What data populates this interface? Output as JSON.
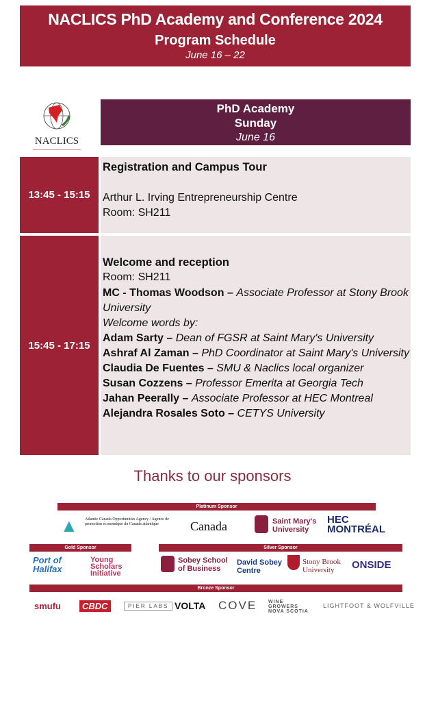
{
  "header": {
    "title": "NACLICS PhD Academy and Conference 2024",
    "subtitle": "Program Schedule",
    "dates": "June 16 – 22"
  },
  "logo": {
    "name": "NACLICS"
  },
  "day": {
    "section": "PhD Academy",
    "weekday": "Sunday",
    "date": "June 16"
  },
  "colors": {
    "primary": "#9d2235",
    "day_header": "#5f1f40",
    "cell_bg": "#ede5e6"
  },
  "sessions": [
    {
      "time": "13:45 - 15:15",
      "title": "Registration and Campus Tour",
      "location": "Arthur L. Irving Entrepreneurship Centre",
      "room": "Room: SH211"
    },
    {
      "time": "15:45 - 17:15",
      "title": "Welcome and reception",
      "room": "Room: SH211",
      "mc": {
        "name": "MC - Thomas Woodson –",
        "role": "Associate Professor at Stony Brook University"
      },
      "welcome_label": "Welcome words by:",
      "speakers": [
        {
          "name": "Adam Sarty –",
          "role": "Dean of FGSR at Saint Mary's University"
        },
        {
          "name": "Ashraf Al Zaman –",
          "role": "PhD Coordinator at Saint Mary's University"
        },
        {
          "name": "Claudia De Fuentes –",
          "role": "SMU & Naclics local organizer"
        },
        {
          "name": "Susan Cozzens –",
          "role": "Professor Emerita at Georgia Tech"
        },
        {
          "name": "Jahan Peerally –",
          "role": "Associate Professor at HEC Montreal"
        },
        {
          "name": "Alejandra Rosales Soto –",
          "role": "CETYS University"
        }
      ]
    }
  ],
  "sponsors": {
    "heading": "Thanks to our sponsors",
    "platinum": {
      "label": "Platinum Sponsor",
      "logos": [
        "Atlantic Canada Opportunities Agency / Agence de promotion économique du Canada atlantique",
        "Canada",
        "Saint Mary's University",
        "HEC MONTRÉAL"
      ]
    },
    "gold": {
      "label": "Gold Sponsor",
      "logos": [
        "Port of Halifax",
        "Young Scholars Initiative"
      ]
    },
    "silver": {
      "label": "Silver Sponsor",
      "logos": [
        "Sobey School of Business",
        "David Sobey Centre",
        "Stony Brook University",
        "ONSIDE"
      ]
    },
    "bronze": {
      "label": "Bronze Sponsor",
      "logos": [
        "smufu",
        "CBDC",
        "PIER LABS",
        "VOLTA",
        "COVE",
        "WINE GROWERS NOVA SCOTIA",
        "LIGHTFOOT & WOLFVILLE"
      ]
    }
  }
}
